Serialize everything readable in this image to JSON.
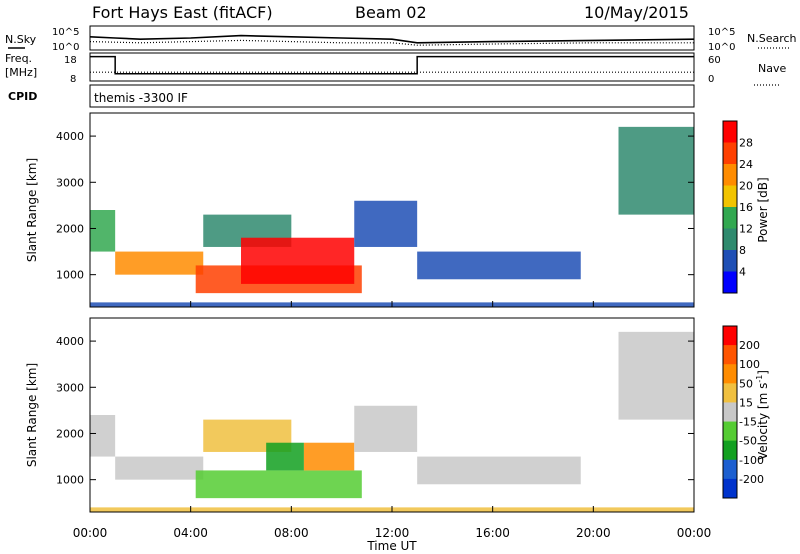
{
  "header": {
    "station": "Fort Hays East (fitACF)",
    "beam": "Beam 02",
    "date": "10/May/2015"
  },
  "colors": {
    "axis": "#000000",
    "power_scale": [
      "#0000ff",
      "#1f4fb5",
      "#2f8a6e",
      "#32a850",
      "#f2c400",
      "#ff8c00",
      "#ff4000",
      "#ff0000"
    ],
    "velocity_scale": [
      "#0033cc",
      "#1c5fd0",
      "#12a020",
      "#55cc33",
      "#c8c8c8",
      "#f0c040",
      "#ff8c00",
      "#ff5500",
      "#ff0000"
    ]
  },
  "chart_data": [
    {
      "id": "noise",
      "type": "line",
      "left_label": "N.Sky",
      "right_label": "N.Search",
      "left_ticks": [
        "10^5",
        "10^0"
      ],
      "right_ticks": [
        "10^5",
        "10^0"
      ],
      "series": [
        {
          "name": "N.Sky",
          "style": "solid",
          "x": [
            0,
            1,
            2,
            4,
            6,
            8,
            10,
            12,
            13,
            16,
            20,
            24
          ],
          "y": [
            0.55,
            0.5,
            0.45,
            0.5,
            0.6,
            0.55,
            0.5,
            0.45,
            0.3,
            0.35,
            0.4,
            0.45
          ]
        },
        {
          "name": "N.Search",
          "style": "dotted",
          "x": [
            0,
            2,
            4,
            6,
            8,
            10,
            12,
            13,
            16,
            20,
            24
          ],
          "y": [
            0.35,
            0.3,
            0.35,
            0.4,
            0.35,
            0.3,
            0.3,
            0.2,
            0.25,
            0.3,
            0.3
          ]
        }
      ]
    },
    {
      "id": "freq",
      "type": "line",
      "left_label_top": "Freq.",
      "left_label_bottom": "[MHz]",
      "right_label": "Nave",
      "left_ticks": [
        "18",
        "8"
      ],
      "right_ticks": [
        "60",
        "0"
      ],
      "ylim_left": [
        8,
        18
      ],
      "series": [
        {
          "name": "Freq.",
          "style": "solid",
          "x": [
            0,
            1.0,
            1.0,
            13.0,
            13.0,
            24
          ],
          "y": [
            17,
            17,
            10.4,
            10.4,
            17,
            17
          ]
        },
        {
          "name": "Nave",
          "style": "dotted",
          "x": [
            0,
            24
          ],
          "y": [
            11,
            11
          ]
        }
      ]
    },
    {
      "id": "cpid",
      "type": "table",
      "left_label": "CPID",
      "text": "themis -3300 IF"
    },
    {
      "id": "power",
      "type": "heatmap",
      "ylabel": "Slant Range [km]",
      "yticks": [
        "1000",
        "2000",
        "3000",
        "4000"
      ],
      "ylim": [
        300,
        4500
      ],
      "xlim": [
        0,
        24
      ],
      "colorbar_label": "Power [dB]",
      "colorbar_ticks": [
        "28",
        "24",
        "20",
        "16",
        "12",
        "8",
        "4"
      ],
      "features": [
        {
          "t0": 0.0,
          "t1": 1.0,
          "r0": 1500,
          "r1": 2400,
          "level": 3
        },
        {
          "t0": 1.0,
          "t1": 4.5,
          "r0": 1000,
          "r1": 1500,
          "level": 5
        },
        {
          "t0": 4.5,
          "t1": 8.0,
          "r0": 1600,
          "r1": 2300,
          "level": 2
        },
        {
          "t0": 4.2,
          "t1": 10.8,
          "r0": 600,
          "r1": 1200,
          "level": 6
        },
        {
          "t0": 6.0,
          "t1": 10.5,
          "r0": 800,
          "r1": 1800,
          "level": 7
        },
        {
          "t0": 10.5,
          "t1": 13.0,
          "r0": 1600,
          "r1": 2600,
          "level": 1
        },
        {
          "t0": 13.0,
          "t1": 19.5,
          "r0": 900,
          "r1": 1500,
          "level": 1
        },
        {
          "t0": 21.0,
          "t1": 24.0,
          "r0": 2300,
          "r1": 4200,
          "level": 2
        },
        {
          "t0": 0.0,
          "t1": 24.0,
          "r0": 300,
          "r1": 400,
          "level": 1
        }
      ]
    },
    {
      "id": "velocity",
      "type": "heatmap",
      "ylabel": "Slant Range [km]",
      "yticks": [
        "1000",
        "2000",
        "3000",
        "4000"
      ],
      "ylim": [
        300,
        4500
      ],
      "xlim": [
        0,
        24
      ],
      "xlabel": "Time UT",
      "xticks": [
        "00:00",
        "04:00",
        "08:00",
        "12:00",
        "16:00",
        "20:00",
        "00:00"
      ],
      "colorbar_label": "Velocity [m s",
      "colorbar_label_sup": "-1",
      "colorbar_label_end": "]",
      "colorbar_ticks": [
        "200",
        "100",
        "50",
        "15",
        "-15",
        "-50",
        "-100",
        "-200"
      ],
      "features": [
        {
          "t0": 0.0,
          "t1": 1.0,
          "r0": 1500,
          "r1": 2400,
          "level": 4
        },
        {
          "t0": 1.0,
          "t1": 4.5,
          "r0": 1000,
          "r1": 1500,
          "level": 4
        },
        {
          "t0": 4.5,
          "t1": 8.0,
          "r0": 1600,
          "r1": 2300,
          "level": 5
        },
        {
          "t0": 4.2,
          "t1": 10.8,
          "r0": 600,
          "r1": 1200,
          "level": 3
        },
        {
          "t0": 7.0,
          "t1": 8.5,
          "r0": 1200,
          "r1": 1800,
          "level": 2
        },
        {
          "t0": 8.5,
          "t1": 10.5,
          "r0": 1200,
          "r1": 1800,
          "level": 6
        },
        {
          "t0": 10.5,
          "t1": 13.0,
          "r0": 1600,
          "r1": 2600,
          "level": 4
        },
        {
          "t0": 13.0,
          "t1": 19.5,
          "r0": 900,
          "r1": 1500,
          "level": 4
        },
        {
          "t0": 21.0,
          "t1": 24.0,
          "r0": 2300,
          "r1": 4200,
          "level": 4
        },
        {
          "t0": 0.0,
          "t1": 24.0,
          "r0": 300,
          "r1": 400,
          "level": 5
        }
      ]
    }
  ]
}
